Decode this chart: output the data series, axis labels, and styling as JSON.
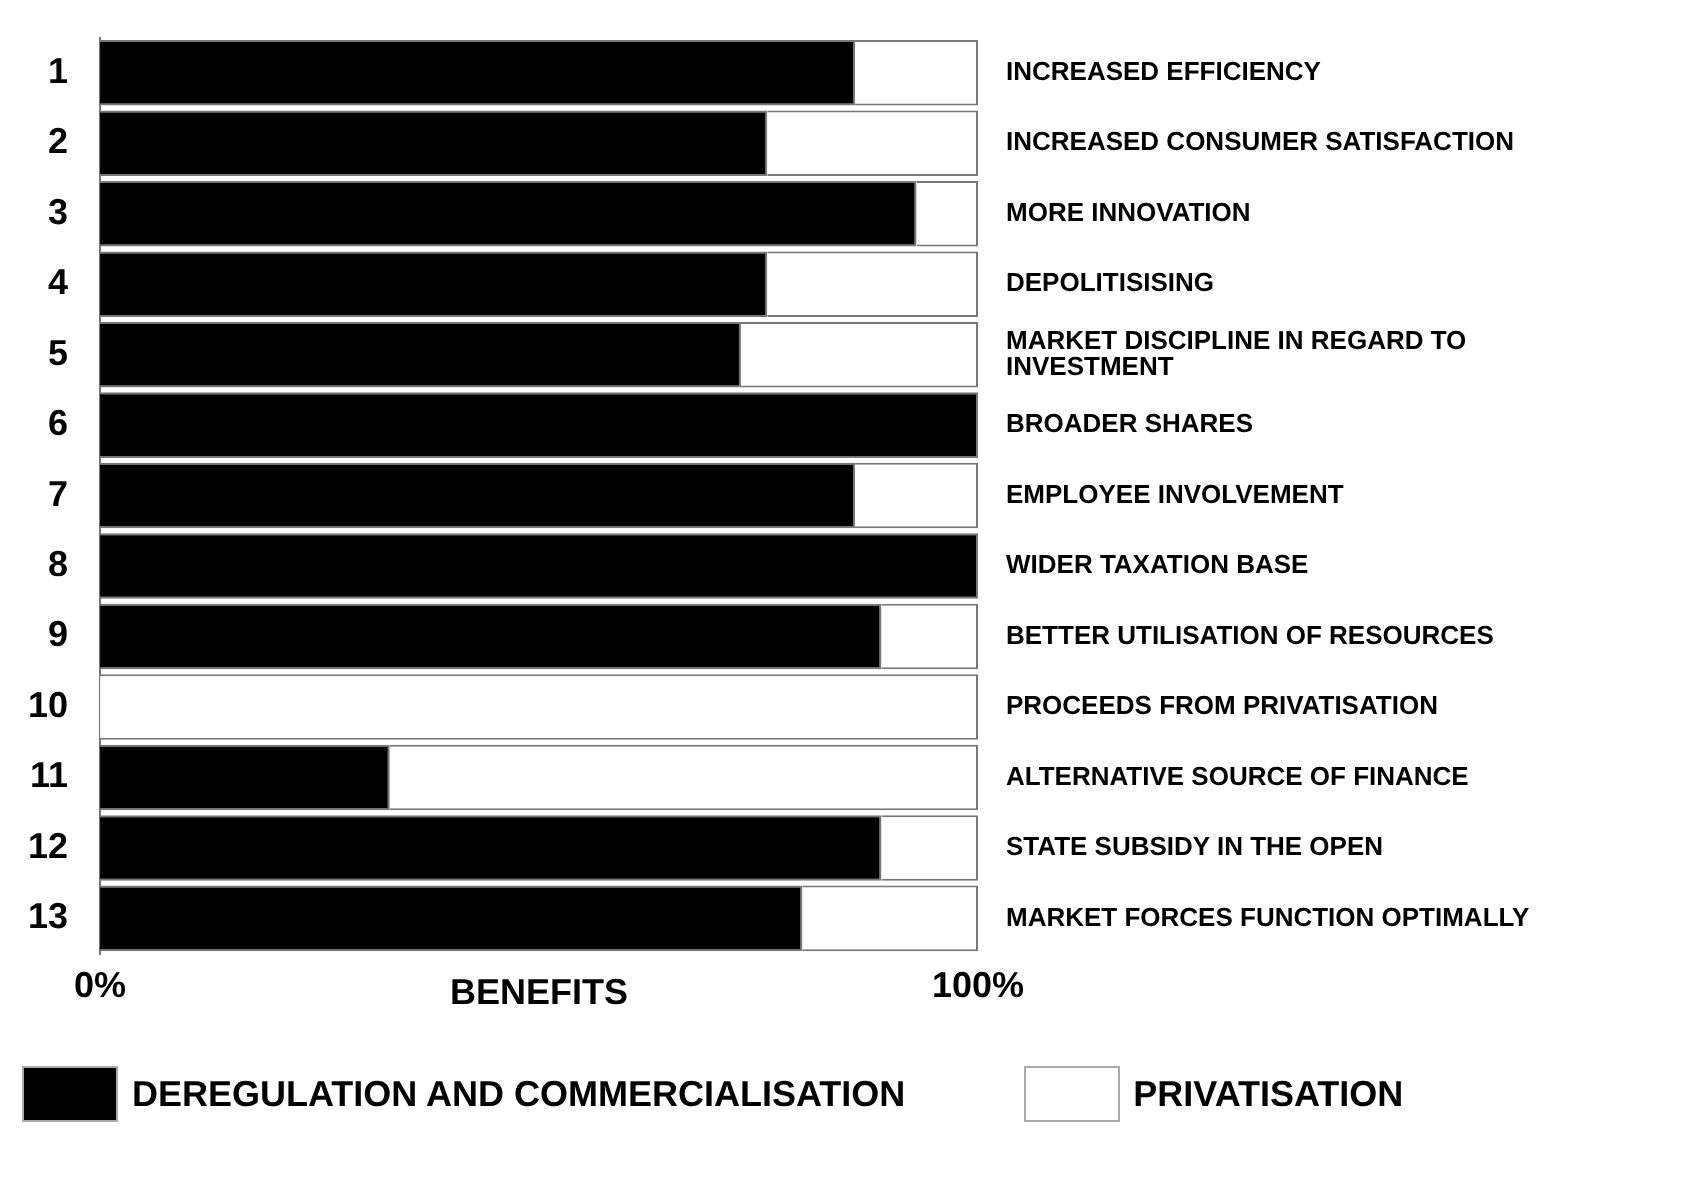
{
  "chart_data": {
    "type": "bar",
    "orientation": "horizontal",
    "stacked": true,
    "categories": [
      "1",
      "2",
      "3",
      "4",
      "5",
      "6",
      "7",
      "8",
      "9",
      "10",
      "11",
      "12",
      "13"
    ],
    "y2_categories": [
      "INCREASED EFFICIENCY",
      "INCREASED CONSUMER SATISFACTION",
      "MORE INNOVATION",
      "DEPOLITISISING",
      "MARKET DISCIPLINE IN REGARD TO\nINVESTMENT",
      "BROADER SHARES",
      "EMPLOYEE INVOLVEMENT",
      "WIDER TAXATION BASE",
      "BETTER UTILISATION OF RESOURCES",
      "PROCEEDS FROM PRIVATISATION",
      "ALTERNATIVE SOURCE OF FINANCE",
      "STATE SUBSIDY IN THE OPEN",
      "MARKET FORCES FUNCTION OPTIMALLY"
    ],
    "series": [
      {
        "name": "DEREGULATION AND COMMERCIALISATION",
        "color": "#000000",
        "values": [
          86,
          76,
          93,
          76,
          73,
          100,
          86,
          100,
          89,
          0,
          33,
          89,
          80
        ]
      },
      {
        "name": "PRIVATISATION",
        "color": "#ffffff",
        "values": [
          14,
          24,
          7,
          24,
          27,
          0,
          14,
          0,
          11,
          100,
          67,
          11,
          20
        ]
      }
    ],
    "xlabel": "BENEFITS",
    "xlim": [
      0,
      100
    ],
    "xticks": [
      {
        "value": 0,
        "label": "0%"
      },
      {
        "value": 100,
        "label": "100%"
      }
    ],
    "grid": false,
    "legend": "bottom"
  }
}
